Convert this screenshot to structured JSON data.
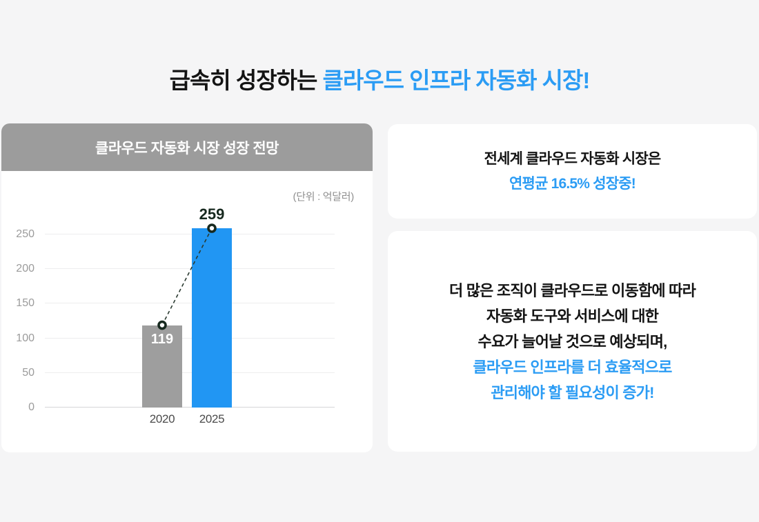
{
  "title": {
    "black": "급속히 성장하는 ",
    "blue": "클라우드 인프라 자동화 시장!"
  },
  "colors": {
    "accent_blue": "#2b9cf4",
    "bar_blue": "#2196f3",
    "bar_gray": "#9e9e9e",
    "header_gray": "#9c9c9c",
    "marker_dark": "#17291f",
    "page_bg": "#f5f5f6"
  },
  "chart_card": {
    "header": "클라우드 자동화 시장 성장 전망",
    "unit_label": "(단위 : 억달러)"
  },
  "chart_data": {
    "type": "bar",
    "title": "클라우드 자동화 시장 성장 전망",
    "unit": "억달러",
    "categories": [
      "2020",
      "2025"
    ],
    "values": [
      119,
      259
    ],
    "yticks": [
      0,
      50,
      100,
      150,
      200,
      250
    ],
    "ylim": [
      0,
      261
    ],
    "grid": true,
    "legend": false,
    "overlay": "dashed trend line with ring markers connecting bar tops",
    "bars": [
      {
        "category": "2020",
        "value": 119,
        "color": "#9e9e9e",
        "label_color": "#ffffff",
        "label_position": "inside"
      },
      {
        "category": "2025",
        "value": 259,
        "color": "#2196f3",
        "label_color": "#17291f",
        "label_position": "above"
      }
    ]
  },
  "cards": [
    {
      "lines": [
        {
          "text": "전세계 클라우드 자동화 시장은"
        },
        {
          "text": "연평균 16.5% 성장중!"
        }
      ]
    },
    {
      "lines": [
        {
          "text": "더 많은 조직이 클라우드로 이동함에 따라"
        },
        {
          "text": "자동화 도구와 서비스에 대한"
        },
        {
          "text": "수요가 늘어날 것으로 예상되며,"
        },
        {
          "text": "클라우드 인프라를 더 효율적으로"
        },
        {
          "text": "관리해야 할 필요성이 증가!"
        }
      ]
    }
  ]
}
